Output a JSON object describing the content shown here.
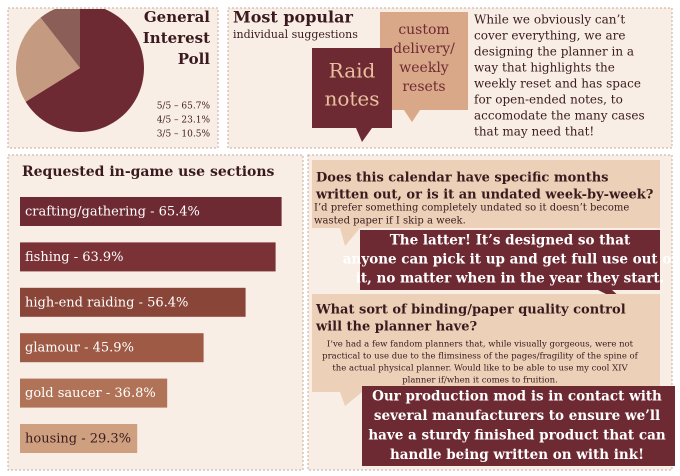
{
  "chart_data": [
    {
      "type": "pie",
      "title": [
        "General",
        "Interest",
        "Poll"
      ],
      "values": [
        65.7,
        23.1,
        10.5
      ],
      "value_labels": [
        "5/5 – 65.7%",
        "4/5 – 23.1%",
        "3/5 – 10.5%"
      ],
      "colors": [
        "#6e2a33",
        "#c49a80",
        "#8c5e58"
      ]
    },
    {
      "type": "bar",
      "orientation": "horizontal",
      "title": "Requested in-game use sections",
      "values": [
        65.4,
        63.9,
        56.4,
        45.9,
        36.8,
        29.3
      ],
      "value_labels": [
        "crafting/gathering - 65.4%",
        "fishing - 63.9%",
        "high-end raiding - 56.4%",
        "glamour - 45.9%",
        "gold saucer - 36.8%",
        "housing - 29.3%"
      ],
      "colors": [
        "#6e2a33",
        "#7a3236",
        "#8a4539",
        "#9e5a45",
        "#b07358",
        "#cfa080"
      ],
      "xlim": [
        0,
        66
      ]
    }
  ],
  "suggestions": {
    "title": "Most popular",
    "subtitle": "individual suggestions",
    "items": [
      [
        "Raid",
        "notes"
      ],
      [
        "custom",
        "delivery/",
        "weekly",
        "resets"
      ]
    ],
    "note": [
      "While we obviously can’t",
      "cover everything, we are",
      "designing the planner in a",
      "way that highlights the",
      "weekly reset and has space",
      "for  open-ended notes, to",
      "accomodate the many cases",
      "that may need that!"
    ]
  },
  "qa": [
    {
      "question": [
        "Does this calendar have specific months",
        "written out, or is it an undated week-by-week?"
      ],
      "detail": [
        "I’d prefer something completely undated so it doesn’t become",
        "wasted paper if I skip a week."
      ],
      "answer": [
        "The latter! It’s designed so that",
        "anyone can pick it up and get full use out of",
        "it, no matter when in the year they start."
      ]
    },
    {
      "question": [
        "What sort of binding/paper quality control",
        "will the planner have?"
      ],
      "detail": [
        "I’ve had a few fandom planners that, while visually gorgeous, were not",
        "practical to use due to the flimsiness of the pages/fragility of the spine of",
        "the actual physical planner. Would like to be able to use my cool XIV",
        "planner if/when it comes to fruition."
      ],
      "answer": [
        "Our production mod is in contact with",
        "several manufacturers to ensure we’ll",
        "have a sturdy finished product that can",
        "handle being written on with ink!"
      ]
    }
  ]
}
